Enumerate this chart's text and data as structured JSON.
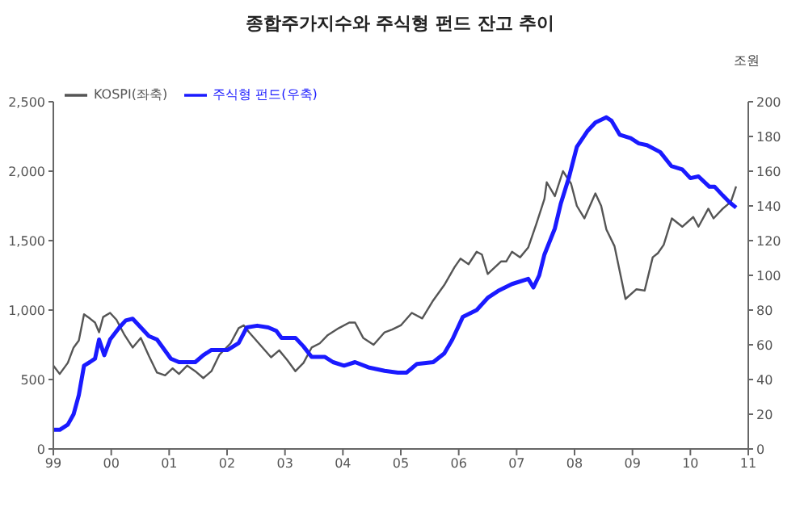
{
  "chart_data": {
    "type": "line",
    "title": "종합주가지수와 주식형 펀드 잔고 추이",
    "y2label": "조원",
    "xlim": [
      1999,
      2011
    ],
    "xticks": [
      {
        "value": 1999,
        "label": "99"
      },
      {
        "value": 2000,
        "label": "00"
      },
      {
        "value": 2001,
        "label": "01"
      },
      {
        "value": 2002,
        "label": "02"
      },
      {
        "value": 2003,
        "label": "03"
      },
      {
        "value": 2004,
        "label": "04"
      },
      {
        "value": 2005,
        "label": "05"
      },
      {
        "value": 2006,
        "label": "06"
      },
      {
        "value": 2007,
        "label": "07"
      },
      {
        "value": 2008,
        "label": "08"
      },
      {
        "value": 2009,
        "label": "09"
      },
      {
        "value": 2010,
        "label": "10"
      },
      {
        "value": 2011,
        "label": "11"
      }
    ],
    "ylim": [
      0,
      2500
    ],
    "yticks": [
      0,
      500,
      {
        "value": 1000,
        "label": "1,000"
      },
      {
        "value": 1500,
        "label": "1,500"
      },
      {
        "value": 2000,
        "label": "2,000"
      },
      {
        "value": 2500,
        "label": "2,500"
      }
    ],
    "y2lim": [
      0,
      200
    ],
    "y2ticks": [
      0,
      20,
      40,
      60,
      80,
      100,
      120,
      140,
      160,
      180,
      200
    ],
    "grid": false,
    "legend": "top left",
    "line_style": "solid",
    "series": [
      {
        "name": "KOSPI(좌축)",
        "color": "#555555",
        "x": [
          1999.0,
          1999.11,
          1999.25,
          1999.35,
          1999.44,
          1999.53,
          1999.63,
          1999.72,
          1999.79,
          1999.86,
          1999.98,
          2000.09,
          2000.23,
          2000.37,
          2000.51,
          2000.65,
          2000.79,
          2000.93,
          2001.06,
          2001.17,
          2001.31,
          2001.45,
          2001.59,
          2001.73,
          2001.87,
          2002.06,
          2002.2,
          2002.29,
          2002.38,
          2002.57,
          2002.76,
          2002.9,
          2003.04,
          2003.18,
          2003.32,
          2003.46,
          2003.6,
          2003.74,
          2003.93,
          2004.11,
          2004.21,
          2004.35,
          2004.53,
          2004.72,
          2004.85,
          2005.0,
          2005.19,
          2005.37,
          2005.56,
          2005.75,
          2005.93,
          2006.03,
          2006.17,
          2006.31,
          2006.4,
          2006.5,
          2006.73,
          2006.82,
          2006.92,
          2007.06,
          2007.2,
          2007.34,
          2007.48,
          2007.52,
          2007.66,
          2007.8,
          2007.94,
          2008.04,
          2008.17,
          2008.36,
          2008.46,
          2008.55,
          2008.69,
          2008.79,
          2008.88,
          2009.07,
          2009.21,
          2009.35,
          2009.44,
          2009.54,
          2009.68,
          2009.86,
          2010.05,
          2010.14,
          2010.31,
          2010.4,
          2010.56,
          2010.7,
          2010.79
        ],
        "values": [
          600,
          540,
          620,
          730,
          780,
          970,
          940,
          910,
          840,
          950,
          980,
          930,
          820,
          730,
          800,
          670,
          550,
          530,
          580,
          540,
          600,
          560,
          510,
          560,
          680,
          760,
          870,
          890,
          840,
          750,
          660,
          710,
          640,
          560,
          620,
          730,
          760,
          820,
          870,
          910,
          910,
          800,
          750,
          840,
          860,
          890,
          980,
          940,
          1070,
          1180,
          1310,
          1370,
          1330,
          1420,
          1400,
          1260,
          1350,
          1350,
          1420,
          1380,
          1450,
          1620,
          1800,
          1920,
          1820,
          2000,
          1910,
          1750,
          1660,
          1840,
          1750,
          1580,
          1460,
          1260,
          1080,
          1150,
          1140,
          1380,
          1410,
          1470,
          1660,
          1600,
          1670,
          1600,
          1730,
          1660,
          1730,
          1780,
          1890
        ]
      },
      {
        "name": "주식형 펀드(우축)",
        "color": "#1a1aff",
        "axis": "y2",
        "x": [
          1999.0,
          1999.11,
          1999.25,
          1999.35,
          1999.44,
          1999.53,
          1999.63,
          1999.72,
          1999.79,
          1999.88,
          1999.98,
          2000.14,
          2000.25,
          2000.37,
          2000.51,
          2000.65,
          2000.79,
          2001.03,
          2001.17,
          2001.31,
          2001.45,
          2001.59,
          2001.73,
          2001.82,
          2002.01,
          2002.2,
          2002.34,
          2002.52,
          2002.71,
          2002.85,
          2002.94,
          2003.18,
          2003.32,
          2003.46,
          2003.69,
          2003.83,
          2004.02,
          2004.21,
          2004.44,
          2004.72,
          2004.95,
          2005.1,
          2005.28,
          2005.56,
          2005.75,
          2005.89,
          2006.07,
          2006.31,
          2006.5,
          2006.68,
          2006.92,
          2007.2,
          2007.29,
          2007.39,
          2007.48,
          2007.66,
          2007.76,
          2007.9,
          2008.04,
          2008.22,
          2008.36,
          2008.55,
          2008.64,
          2008.78,
          2008.97,
          2009.11,
          2009.25,
          2009.48,
          2009.67,
          2009.86,
          2010.0,
          2010.14,
          2010.33,
          2010.42,
          2010.56,
          2010.68,
          2010.79
        ],
        "values": [
          11,
          11,
          14,
          20,
          31,
          48,
          50,
          52,
          63,
          54,
          63,
          70,
          74,
          75,
          70,
          65,
          63,
          52,
          50,
          50,
          50,
          54,
          57,
          57,
          57,
          61,
          70,
          71,
          70,
          68,
          64,
          64,
          59,
          53,
          53,
          50,
          48,
          50,
          47,
          45,
          44,
          44,
          49,
          50,
          55,
          63,
          76,
          80,
          87,
          91,
          95,
          98,
          93,
          100,
          112,
          127,
          141,
          156,
          174,
          183,
          188,
          191,
          189,
          181,
          179,
          176,
          175,
          171,
          163,
          161,
          156,
          157,
          151,
          151,
          146,
          142,
          139
        ]
      }
    ]
  }
}
